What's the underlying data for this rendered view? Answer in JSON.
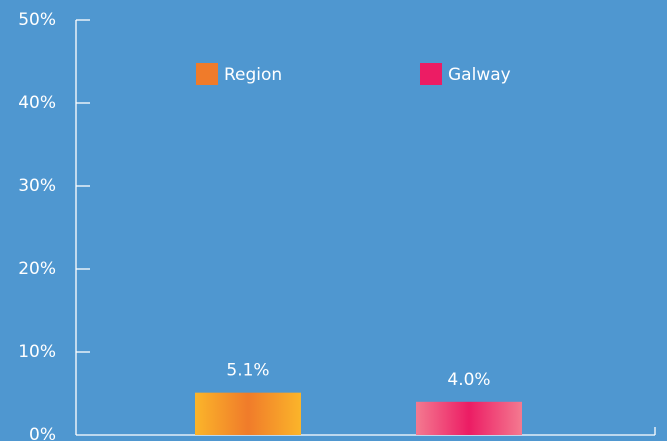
{
  "chart_data": {
    "type": "bar",
    "categories": [
      null
    ],
    "series": [
      {
        "name": "Region",
        "color": "#f07b2a",
        "gradient_edge": "#fbb52a",
        "values": [
          5.1
        ],
        "value_labels": [
          "5.1%"
        ]
      },
      {
        "name": "Galway",
        "color": "#ec1c64",
        "gradient_edge": "#f47a90",
        "values": [
          4.0
        ],
        "value_labels": [
          "4.0%"
        ]
      }
    ],
    "ylim": [
      0,
      50
    ],
    "yticks": [
      {
        "value": 0,
        "label": "0%"
      },
      {
        "value": 10,
        "label": "10%"
      },
      {
        "value": 20,
        "label": "20%"
      },
      {
        "value": 30,
        "label": "30%"
      },
      {
        "value": 40,
        "label": "40%"
      },
      {
        "value": 50,
        "label": "50%"
      }
    ],
    "legend": "top"
  }
}
